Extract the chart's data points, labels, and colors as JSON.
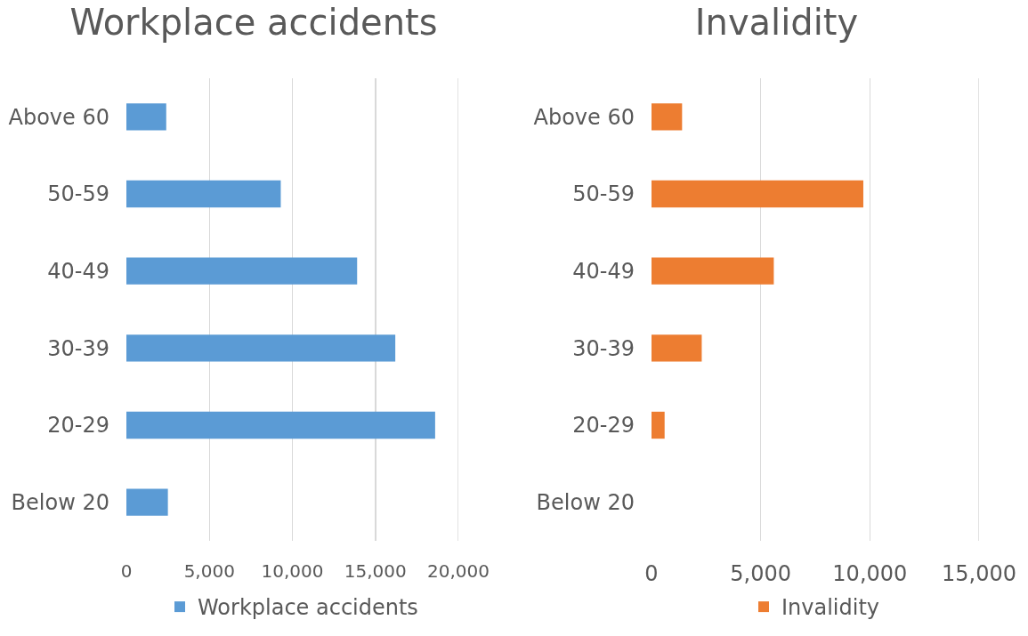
{
  "chart_data": [
    {
      "type": "bar",
      "orientation": "horizontal",
      "title": "Workplace accidents",
      "categories": [
        "Above 60",
        "50-59",
        "40-49",
        "30-39",
        "20-29",
        "Below 20"
      ],
      "series": [
        {
          "name": "Workplace accidents",
          "color": "#5b9bd5",
          "values": [
            2400,
            9300,
            13900,
            16200,
            18600,
            2500
          ]
        }
      ],
      "xlim": [
        0,
        20000
      ],
      "xticks": [
        {
          "value": 0,
          "label": "0"
        },
        {
          "value": 5000,
          "label": "5,000"
        },
        {
          "value": 10000,
          "label": "10,000"
        },
        {
          "value": 15000,
          "label": "15,000"
        },
        {
          "value": 20000,
          "label": "20,000"
        }
      ],
      "grid": "x",
      "legend": "bottom"
    },
    {
      "type": "bar",
      "orientation": "horizontal",
      "title": "Invalidity",
      "categories": [
        "Above 60",
        "50-59",
        "40-49",
        "30-39",
        "20-29",
        "Below 20"
      ],
      "series": [
        {
          "name": "Invalidity",
          "color": "#ed7d31",
          "values": [
            1400,
            9700,
            5600,
            2300,
            600,
            0
          ]
        }
      ],
      "xlim": [
        0,
        15000
      ],
      "xticks": [
        {
          "value": 0,
          "label": "0"
        },
        {
          "value": 5000,
          "label": "5,000"
        },
        {
          "value": 10000,
          "label": "10,000"
        },
        {
          "value": 15000,
          "label": "15,000"
        }
      ],
      "grid": "x",
      "legend": "bottom"
    }
  ]
}
